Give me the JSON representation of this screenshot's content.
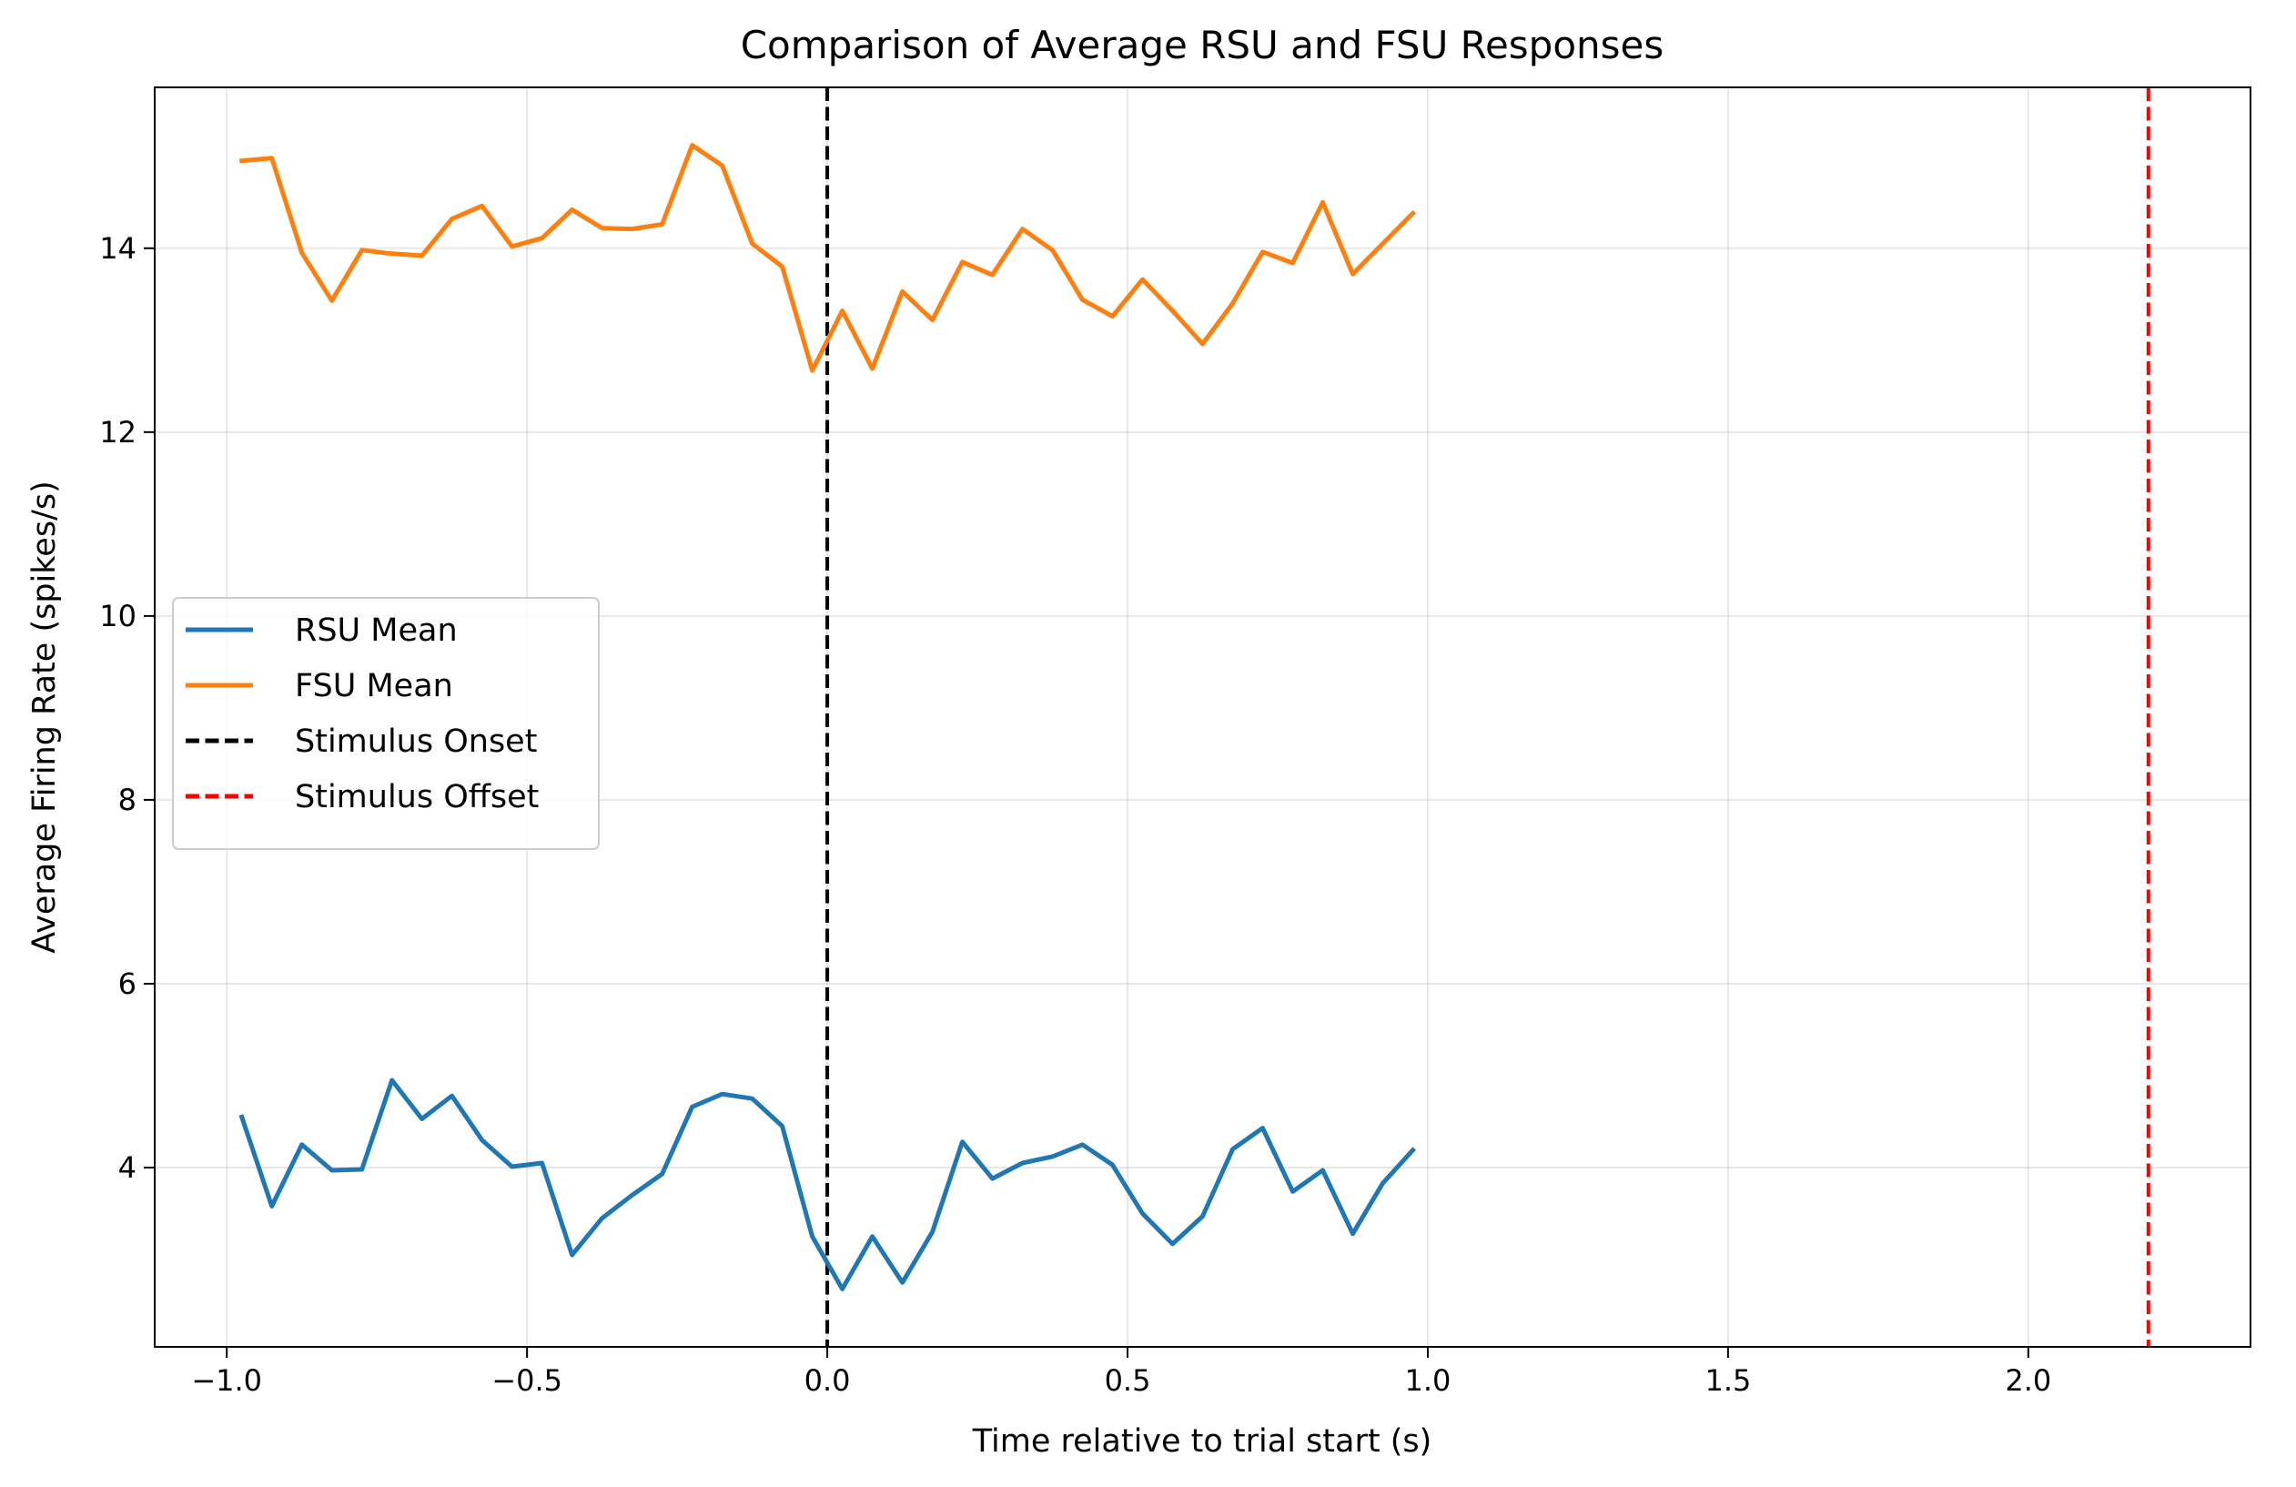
{
  "chart_data": {
    "type": "line",
    "title": "Comparison of Average RSU and FSU Responses",
    "xlabel": "Time relative to trial start (s)",
    "ylabel": "Average Firing Rate (spikes/s)",
    "xlim": [
      -1.12,
      2.37
    ],
    "ylim": [
      2.05,
      15.75
    ],
    "xticks": [
      {
        "value": -1.0,
        "label": "−1.0"
      },
      {
        "value": -0.5,
        "label": "−0.5"
      },
      {
        "value": 0.0,
        "label": "0.0"
      },
      {
        "value": 0.5,
        "label": "0.5"
      },
      {
        "value": 1.0,
        "label": "1.0"
      },
      {
        "value": 1.5,
        "label": "1.5"
      },
      {
        "value": 2.0,
        "label": "2.0"
      }
    ],
    "yticks": [
      {
        "value": 4,
        "label": "4"
      },
      {
        "value": 6,
        "label": "6"
      },
      {
        "value": 8,
        "label": "8"
      },
      {
        "value": 10,
        "label": "10"
      },
      {
        "value": 12,
        "label": "12"
      },
      {
        "value": 14,
        "label": "14"
      }
    ],
    "grid": true,
    "legend_position": "center-left",
    "x": [
      -0.975,
      -0.925,
      -0.875,
      -0.825,
      -0.775,
      -0.725,
      -0.675,
      -0.625,
      -0.575,
      -0.525,
      -0.475,
      -0.425,
      -0.375,
      -0.325,
      -0.275,
      -0.225,
      -0.175,
      -0.125,
      -0.075,
      -0.025,
      0.025,
      0.075,
      0.125,
      0.175,
      0.225,
      0.275,
      0.325,
      0.375,
      0.425,
      0.475,
      0.525,
      0.575,
      0.625,
      0.675,
      0.725,
      0.775,
      0.825,
      0.875,
      0.925,
      0.975
    ],
    "series": [
      {
        "name": "RSU Mean",
        "color": "#1f77b4",
        "style": "solid",
        "values": [
          4.55,
          3.58,
          4.25,
          3.97,
          3.98,
          4.95,
          4.53,
          4.78,
          4.3,
          4.01,
          4.05,
          3.05,
          3.45,
          3.7,
          3.93,
          4.66,
          4.8,
          4.75,
          4.45,
          3.25,
          2.68,
          3.25,
          2.75,
          3.3,
          4.28,
          3.88,
          4.05,
          4.12,
          4.25,
          4.03,
          3.5,
          3.17,
          3.47,
          4.2,
          4.43,
          3.74,
          3.97,
          3.28,
          3.83,
          4.19
        ]
      },
      {
        "name": "FSU Mean",
        "color": "#ff7f0e",
        "style": "solid",
        "values": [
          14.95,
          14.98,
          13.95,
          13.43,
          13.98,
          13.94,
          13.92,
          14.32,
          14.46,
          14.02,
          14.11,
          14.42,
          14.22,
          14.21,
          14.26,
          15.12,
          14.9,
          14.05,
          13.8,
          12.67,
          13.32,
          12.69,
          13.53,
          13.22,
          13.85,
          13.71,
          14.21,
          13.98,
          13.44,
          13.26,
          13.66,
          13.32,
          12.96,
          13.4,
          13.96,
          13.84,
          14.5,
          13.72,
          14.05,
          14.38
        ]
      }
    ],
    "reference_lines": [
      {
        "name": "Stimulus Onset",
        "x": 0.0,
        "color": "#000000",
        "style": "dashed"
      },
      {
        "name": "Stimulus Offset",
        "x": 2.2,
        "color": "#ff0000",
        "style": "dashed"
      }
    ],
    "legend": [
      {
        "label": "RSU Mean",
        "color": "#1f77b4",
        "style": "solid"
      },
      {
        "label": "FSU Mean",
        "color": "#ff7f0e",
        "style": "solid"
      },
      {
        "label": "Stimulus Onset",
        "color": "#000000",
        "style": "dashed"
      },
      {
        "label": "Stimulus Offset",
        "color": "#ff0000",
        "style": "dashed"
      }
    ]
  }
}
